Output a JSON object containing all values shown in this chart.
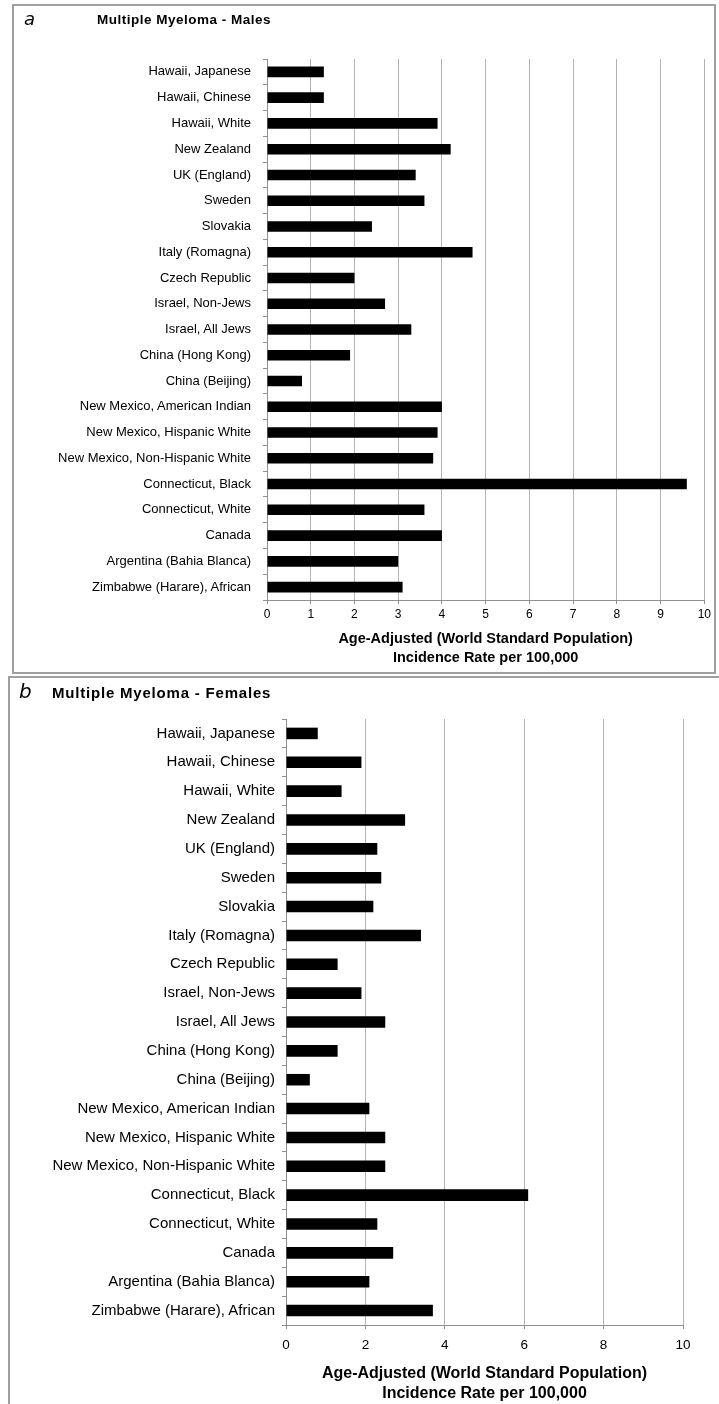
{
  "chart_data": [
    {
      "type": "bar",
      "orientation": "horizontal",
      "title": "Multiple Myeloma - Males",
      "annotations": [
        "a"
      ],
      "categories": [
        "Hawaii, Japanese",
        "Hawaii, Chinese",
        "Hawaii, White",
        "New Zealand",
        "UK (England)",
        "Sweden",
        "Slovakia",
        "Italy (Romagna)",
        "Czech Republic",
        "Israel, Non-Jews",
        "Israel, All Jews",
        "China (Hong Kong)",
        "China (Beijing)",
        "New Mexico, American Indian",
        "New Mexico, Hispanic White",
        "New Mexico, Non-Hispanic White",
        "Connecticut, Black",
        "Connecticut, White",
        "Canada",
        "Argentina (Bahia Blanca)",
        "Zimbabwe (Harare), African"
      ],
      "values": [
        1.3,
        1.3,
        3.9,
        4.2,
        3.4,
        3.6,
        2.4,
        4.7,
        2.0,
        2.7,
        3.3,
        1.9,
        0.8,
        4.0,
        3.9,
        3.8,
        9.6,
        3.6,
        4.0,
        3.0,
        3.1
      ],
      "color": "#000000",
      "xlabel": "Age-Adjusted (World Standard Population)\nIncidence Rate per 100,000",
      "xlim": [
        0,
        10
      ],
      "xticks": [
        0,
        1,
        2,
        3,
        4,
        5,
        6,
        7,
        8,
        9,
        10
      ],
      "grid": "x",
      "legend": false
    },
    {
      "type": "bar",
      "orientation": "horizontal",
      "title": "Multiple Myeloma - Females",
      "annotations": [
        "b"
      ],
      "categories": [
        "Hawaii, Japanese",
        "Hawaii, Chinese",
        "Hawaii, White",
        "New Zealand",
        "UK (England)",
        "Sweden",
        "Slovakia",
        "Italy (Romagna)",
        "Czech Republic",
        "Israel, Non-Jews",
        "Israel, All Jews",
        "China (Hong Kong)",
        "China (Beijing)",
        "New Mexico, American Indian",
        "New Mexico, Hispanic White",
        "New Mexico, Non-Hispanic White",
        "Connecticut, Black",
        "Connecticut, White",
        "Canada",
        "Argentina (Bahia Blanca)",
        "Zimbabwe (Harare), African"
      ],
      "values": [
        0.8,
        1.9,
        1.4,
        3.0,
        2.3,
        2.4,
        2.2,
        3.4,
        1.3,
        1.9,
        2.5,
        1.3,
        0.6,
        2.1,
        2.5,
        2.5,
        6.1,
        2.3,
        2.7,
        2.1,
        3.7
      ],
      "color": "#000000",
      "xlabel": "Age-Adjusted (World Standard Population)\nIncidence Rate per 100,000",
      "xlim": [
        0,
        10
      ],
      "xticks": [
        0,
        2,
        4,
        6,
        8,
        10
      ],
      "grid": "x",
      "legend": false
    }
  ]
}
